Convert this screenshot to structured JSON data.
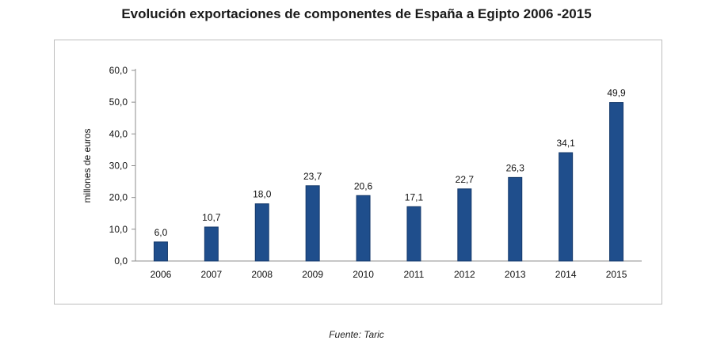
{
  "chart_data": {
    "type": "bar",
    "title": "Evolución exportaciones de componentes de España a Egipto 2006 -2015",
    "ylabel": "millones de euros",
    "xlabel": "",
    "categories": [
      "2006",
      "2007",
      "2008",
      "2009",
      "2010",
      "2011",
      "2012",
      "2013",
      "2014",
      "2015"
    ],
    "values": [
      6.0,
      10.7,
      18.0,
      23.7,
      20.6,
      17.1,
      22.7,
      26.3,
      34.1,
      49.9
    ],
    "value_labels": [
      "6,0",
      "10,7",
      "18,0",
      "23,7",
      "20,6",
      "17,1",
      "22,7",
      "26,3",
      "34,1",
      "49,9"
    ],
    "yticks": [
      0,
      10,
      20,
      30,
      40,
      50,
      60
    ],
    "ytick_labels": [
      "0,0",
      "10,0",
      "20,0",
      "30,0",
      "40,0",
      "50,0",
      "60,0"
    ],
    "ylim": [
      0,
      60
    ],
    "grid": false,
    "legend": "none",
    "bar_color": "#1f4e8c"
  },
  "source": "Fuente: Taric"
}
